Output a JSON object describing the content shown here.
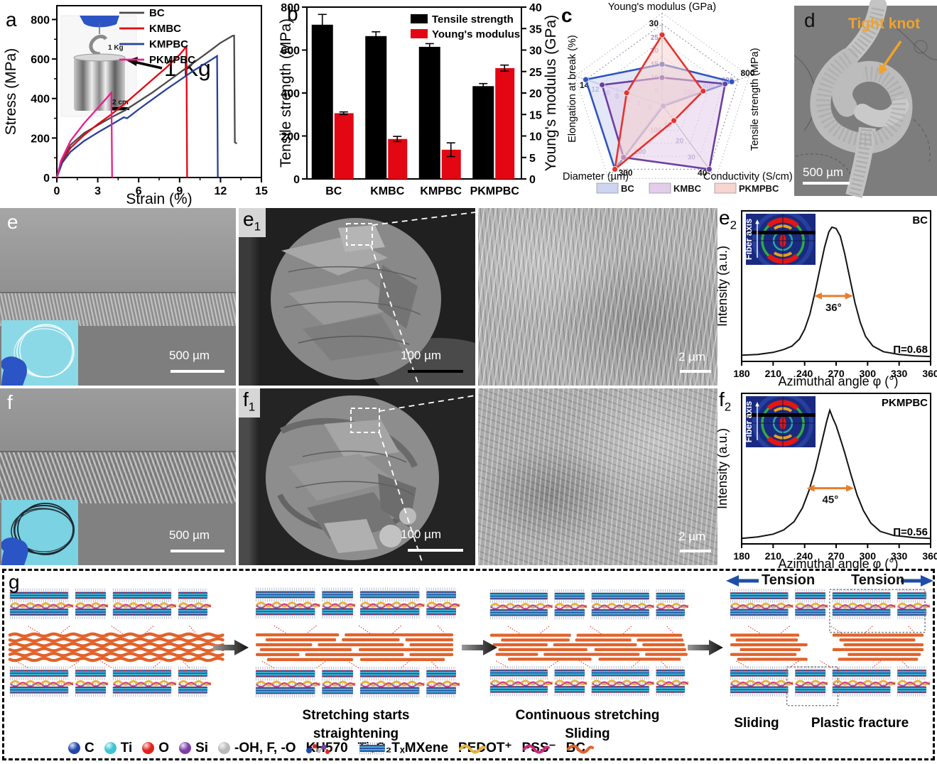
{
  "figure": {
    "labels": {
      "a": "a",
      "b": "b",
      "c": "c",
      "d": "d",
      "e": "e",
      "f": "f",
      "g": "g",
      "sub1": "1",
      "sub2": "2"
    }
  },
  "panel_a": {
    "xlabel": "Strain (%)",
    "ylabel": "Stress (MPa)",
    "legend": [
      "BC",
      "KMBC",
      "KMPBC",
      "PKMPBC"
    ],
    "inset": {
      "weight_tag": "1 Kg",
      "callout": "1 Kg",
      "scalebar": "2 cm"
    }
  },
  "panel_d": {
    "annotation": "Tight knot",
    "scalebar": "500 µm"
  },
  "panel_e": {
    "scalebar": "500 µm"
  },
  "panel_e1": {
    "scalebar": "100 µm"
  },
  "panel_e1zoom": {
    "scalebar": "2 µm"
  },
  "panel_f": {
    "scalebar": "500 µm"
  },
  "panel_f1": {
    "scalebar": "100 µm"
  },
  "panel_f1zoom": {
    "scalebar": "2 µm"
  },
  "panel_g": {
    "stage2_line1": "Stretching starts",
    "stage2_line2": "straightening",
    "stage3_line1": "Continuous stretching",
    "stage3_line2": "Sliding",
    "stage4_sliding": "Sliding",
    "stage4_fracture": "Plastic fracture",
    "tension_left": "Tension",
    "tension_right": "Tension",
    "legend": [
      {
        "label": "C",
        "icon": "sphere",
        "color": "#2346ad"
      },
      {
        "label": "Ti",
        "icon": "sphere",
        "color": "#3cc3d5"
      },
      {
        "label": "O",
        "icon": "sphere",
        "color": "#e2231a"
      },
      {
        "label": "Si",
        "icon": "sphere",
        "color": "#7b3fa8"
      },
      {
        "label": "-OH, F, -O",
        "icon": "sphere",
        "color": "#b9b9b9"
      },
      {
        "label": "KH570",
        "icon": "kh570",
        "color": "#2346ad"
      },
      {
        "label": "Ti₃C₂TₓMXene",
        "icon": "mxene",
        "color": "#2456a8"
      },
      {
        "label": "PEDOT⁺",
        "icon": "wave",
        "color": "#e7b33c"
      },
      {
        "label": "PSS⁻",
        "icon": "wave",
        "color": "#cf2a7c"
      },
      {
        "label": "BC",
        "icon": "wave",
        "color": "#e2622b"
      }
    ]
  },
  "chart_data": [
    {
      "id": "stress_strain",
      "type": "line",
      "panel": "a",
      "xlabel": "Strain (%)",
      "ylabel": "Stress (MPa)",
      "xlim": [
        0,
        15
      ],
      "ylim": [
        0,
        870
      ],
      "xticks": [
        0,
        3,
        6,
        9,
        12,
        15
      ],
      "yticks": [
        0,
        200,
        400,
        600,
        800
      ],
      "series": [
        {
          "name": "BC",
          "color": "#4a4a4a",
          "points": [
            [
              0,
              0
            ],
            [
              0.4,
              90
            ],
            [
              1,
              165
            ],
            [
              2,
              225
            ],
            [
              3,
              265
            ],
            [
              4,
              305
            ],
            [
              5,
              340
            ],
            [
              6,
              385
            ],
            [
              7,
              430
            ],
            [
              8,
              480
            ],
            [
              9,
              530
            ],
            [
              10,
              580
            ],
            [
              11,
              630
            ],
            [
              12,
              682
            ],
            [
              12.9,
              718
            ],
            [
              13,
              718
            ],
            [
              13.05,
              178
            ],
            [
              13.2,
              172
            ]
          ]
        },
        {
          "name": "KMBC",
          "color": "#e30613",
          "points": [
            [
              0,
              0
            ],
            [
              0.4,
              80
            ],
            [
              1,
              150
            ],
            [
              2,
              215
            ],
            [
              3,
              270
            ],
            [
              4,
              320
            ],
            [
              5,
              375
            ],
            [
              6,
              435
            ],
            [
              7,
              495
            ],
            [
              8,
              555
            ],
            [
              9,
              622
            ],
            [
              9.5,
              663
            ],
            [
              9.55,
              5
            ],
            [
              9.6,
              0
            ]
          ]
        },
        {
          "name": "KMPBC",
          "color": "#27409b",
          "points": [
            [
              0,
              0
            ],
            [
              0.4,
              75
            ],
            [
              1,
              130
            ],
            [
              2,
              185
            ],
            [
              3,
              228
            ],
            [
              4,
              268
            ],
            [
              4.9,
              305
            ],
            [
              5.15,
              300
            ],
            [
              6,
              345
            ],
            [
              7,
              395
            ],
            [
              8,
              445
            ],
            [
              9,
              492
            ],
            [
              10,
              540
            ],
            [
              11,
              582
            ],
            [
              11.75,
              615
            ],
            [
              11.8,
              5
            ],
            [
              11.85,
              0
            ]
          ]
        },
        {
          "name": "PKMPBC",
          "color": "#ec1e8c",
          "points": [
            [
              0,
              0
            ],
            [
              0.3,
              85
            ],
            [
              1,
              185
            ],
            [
              2,
              275
            ],
            [
              3,
              352
            ],
            [
              3.6,
              398
            ],
            [
              4,
              430
            ],
            [
              4.05,
              5
            ],
            [
              4.1,
              0
            ]
          ]
        }
      ]
    },
    {
      "id": "mechanics_bars",
      "type": "bar",
      "panel": "b",
      "categories": [
        "BC",
        "KMBC",
        "KMPBC",
        "PKMPBC"
      ],
      "ylabel_left": "Tensile strength (MPa)",
      "ylabel_right": "Young's modulus (GPa)",
      "ylim_left": [
        0,
        800
      ],
      "ylim_right": [
        0,
        40
      ],
      "yticks_left": [
        0,
        200,
        400,
        600,
        800
      ],
      "yticks_right": [
        0,
        5,
        10,
        15,
        20,
        25,
        30,
        35,
        40
      ],
      "series": [
        {
          "name": "Tensile strength",
          "axis": "left",
          "color": "#000000",
          "values": [
            718,
            665,
            615,
            432
          ],
          "errors": [
            48,
            20,
            15,
            12
          ]
        },
        {
          "name": "Young's modulus",
          "axis": "right",
          "color": "#e30613",
          "values": [
            15.3,
            9.3,
            6.8,
            25.8
          ],
          "errors": [
            0.3,
            0.6,
            1.6,
            0.7
          ]
        }
      ]
    },
    {
      "id": "property_radar",
      "type": "radar",
      "panel": "c",
      "axes": [
        {
          "label": "Young's modulus (GPa)",
          "max": 30,
          "ticks": [
            5,
            10,
            15,
            20,
            25,
            30
          ]
        },
        {
          "label": "Tensile strength (MPa)",
          "max": 800,
          "ticks": [
            200,
            400,
            600,
            800
          ]
        },
        {
          "label": "Conductivity (S/cm)",
          "max": 40,
          "ticks": [
            10,
            20,
            30,
            40
          ]
        },
        {
          "label": "Diameter (µm)",
          "max": 300,
          "ticks": [
            100,
            200,
            300
          ]
        },
        {
          "label": "Elongation at break (%)",
          "max": 14,
          "ticks": [
            2,
            4,
            6,
            8,
            10,
            12,
            14
          ]
        }
      ],
      "series": [
        {
          "name": "BC",
          "color": "#2f54c0",
          "fill": "#ccd4f0",
          "values": [
            15,
            730,
            1,
            300,
            14
          ]
        },
        {
          "name": "KMBC",
          "color": "#6b3fa4",
          "fill": "#e3cdeb",
          "values": [
            10,
            660,
            40,
            245,
            11
          ]
        },
        {
          "name": "PKMPBC",
          "color": "#e5332e",
          "fill": "#f7d4d0",
          "values": [
            26,
            430,
            10,
            300,
            6.5
          ]
        }
      ]
    },
    {
      "id": "azimuthal_BC",
      "type": "line",
      "panel": "e2",
      "sample": "BC",
      "inset_label": "Fiber axis",
      "xlabel": "Azimuthal angle φ (°)",
      "ylabel": "Intensity (a.u.)",
      "xlim": [
        180,
        360
      ],
      "xticks": [
        180,
        210,
        240,
        270,
        300,
        330,
        360
      ],
      "annotations": {
        "fwhm_label": "36°",
        "fwhm_deg": 36,
        "pi": "Π=0.68",
        "arrow_x": [
          249,
          286
        ],
        "arrow_y": 0.47
      },
      "points": [
        [
          180,
          0.045
        ],
        [
          195,
          0.05
        ],
        [
          210,
          0.065
        ],
        [
          220,
          0.085
        ],
        [
          228,
          0.11
        ],
        [
          235,
          0.16
        ],
        [
          240,
          0.23
        ],
        [
          245,
          0.34
        ],
        [
          250,
          0.5
        ],
        [
          255,
          0.68
        ],
        [
          259,
          0.82
        ],
        [
          263,
          0.93
        ],
        [
          266,
          0.965
        ],
        [
          270,
          0.955
        ],
        [
          274,
          0.9
        ],
        [
          278,
          0.78
        ],
        [
          283,
          0.6
        ],
        [
          288,
          0.42
        ],
        [
          293,
          0.28
        ],
        [
          298,
          0.18
        ],
        [
          305,
          0.11
        ],
        [
          315,
          0.07
        ],
        [
          330,
          0.05
        ],
        [
          345,
          0.04
        ],
        [
          360,
          0.035
        ]
      ]
    },
    {
      "id": "azimuthal_PKMPBC",
      "type": "line",
      "panel": "f2",
      "sample": "PKMPBC",
      "inset_label": "Fiber axis",
      "xlabel": "Azimuthal angle φ (°)",
      "ylabel": "Intensity (a.u.)",
      "xlim": [
        180,
        360
      ],
      "xticks": [
        180,
        210,
        240,
        270,
        300,
        330,
        360
      ],
      "annotations": {
        "fwhm_label": "45°",
        "fwhm_deg": 45,
        "pi": "Π=0.56",
        "arrow_x": [
          242,
          287
        ],
        "arrow_y": 0.4
      },
      "points": [
        [
          180,
          0.04
        ],
        [
          195,
          0.05
        ],
        [
          210,
          0.07
        ],
        [
          220,
          0.1
        ],
        [
          230,
          0.16
        ],
        [
          238,
          0.26
        ],
        [
          244,
          0.38
        ],
        [
          250,
          0.53
        ],
        [
          256,
          0.72
        ],
        [
          261,
          0.88
        ],
        [
          264,
          0.96
        ],
        [
          267,
          0.9
        ],
        [
          270,
          0.85
        ],
        [
          273,
          0.78
        ],
        [
          278,
          0.66
        ],
        [
          284,
          0.5
        ],
        [
          290,
          0.35
        ],
        [
          296,
          0.24
        ],
        [
          303,
          0.15
        ],
        [
          312,
          0.09
        ],
        [
          325,
          0.06
        ],
        [
          345,
          0.045
        ],
        [
          360,
          0.04
        ]
      ]
    }
  ]
}
